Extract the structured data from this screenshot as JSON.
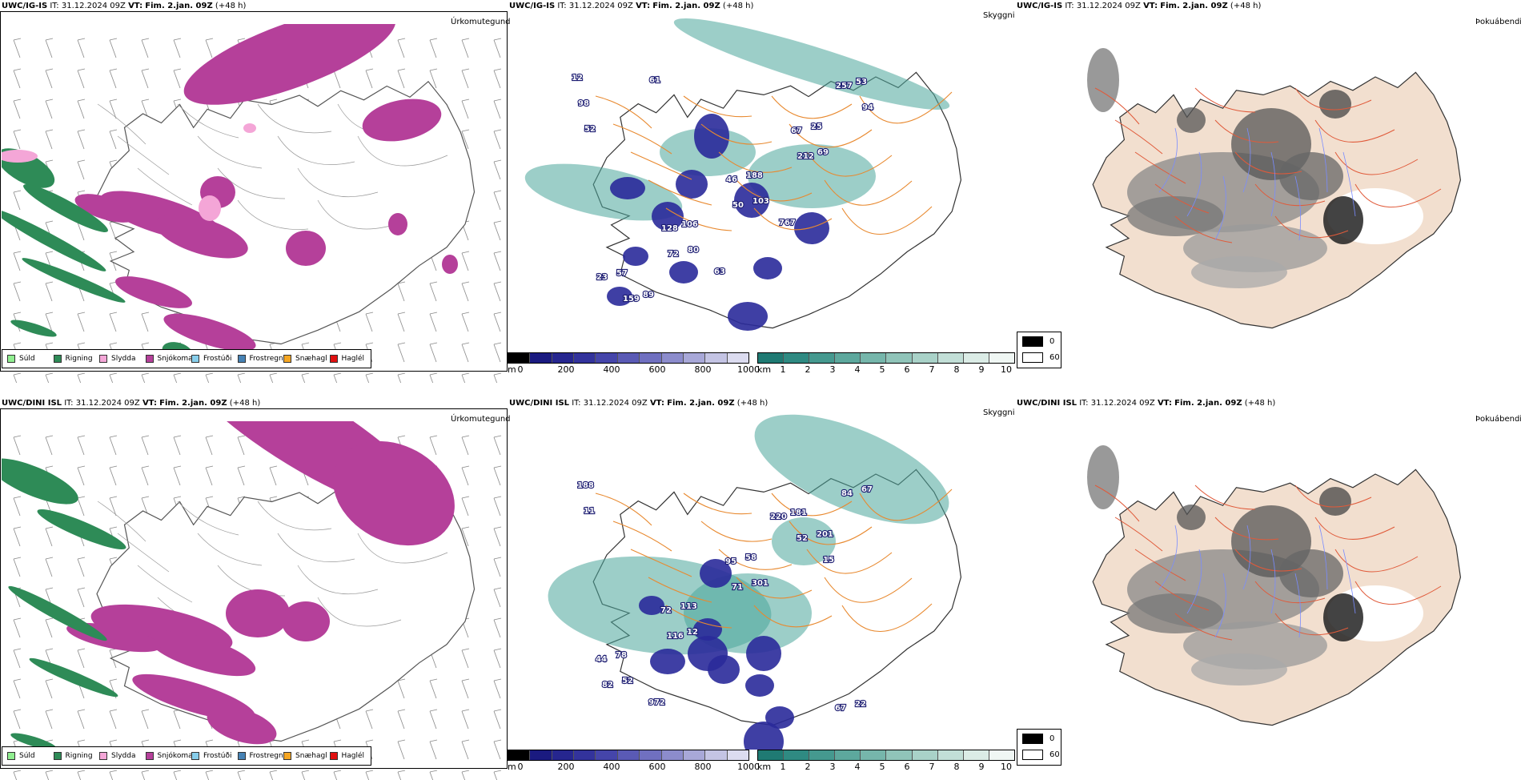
{
  "rows": [
    {
      "model": "UWC/IG-IS",
      "it_label": "IT:",
      "it_value": "31.12.2024 09Z",
      "vt_label": "VT:",
      "vt_value": "Fim. 2.jan. 09Z",
      "lead": "(+48 h)",
      "precip_title": "Úrkomutegund",
      "vis_title": "Skyggni",
      "fog_title": "Þokuábendi",
      "vis_labels": [
        "12",
        "25",
        "188",
        "106",
        "57",
        "53",
        "67",
        "46",
        "128",
        "23",
        "257",
        "89",
        "98",
        "69",
        "103",
        "80",
        "159",
        "94",
        "212",
        "50",
        "72",
        "767",
        "63",
        "61",
        "52"
      ]
    },
    {
      "model": "UWC/DINI ISL",
      "it_label": "IT:",
      "it_value": "31.12.2024 09Z",
      "vt_label": "VT:",
      "vt_value": "Fim. 2.jan. 09Z",
      "lead": "(+48 h)",
      "precip_title": "Úrkomutegund",
      "vis_title": "Skyggni",
      "fog_title": "Þokuábendi",
      "vis_labels": [
        "58",
        "113",
        "78",
        "22",
        "181",
        "95",
        "72",
        "44",
        "67",
        "220",
        "188",
        "201",
        "301",
        "12",
        "52",
        "67",
        "52",
        "71",
        "116",
        "82",
        "84",
        "972",
        "11",
        "15"
      ]
    }
  ],
  "precip_legend": [
    {
      "label": "Súld",
      "color": "#90ee90"
    },
    {
      "label": "Rigning",
      "color": "#2e8b57"
    },
    {
      "label": "Slydda",
      "color": "#f4a6d7"
    },
    {
      "label": "Snjókoma",
      "color": "#b5409a"
    },
    {
      "label": "Frostúði",
      "color": "#87ceeb"
    },
    {
      "label": "Frostregn",
      "color": "#4682b4"
    },
    {
      "label": "Snæhagl",
      "color": "#f5a623"
    },
    {
      "label": "Haglél",
      "color": "#e01010"
    }
  ],
  "height_scale": {
    "unit": "m",
    "ticks": [
      "0",
      "200",
      "400",
      "600",
      "800",
      "1000"
    ],
    "colors": [
      "#000000",
      "#1a1a80",
      "#26268f",
      "#33339c",
      "#4545aa",
      "#5a5ab5",
      "#7070c0",
      "#8c8ccc",
      "#a8a8d8",
      "#c4c4e4",
      "#dcdcf0"
    ]
  },
  "vis_scale": {
    "unit": "km",
    "ticks": [
      "1",
      "2",
      "3",
      "4",
      "5",
      "6",
      "7",
      "8",
      "9",
      "10"
    ],
    "colors": [
      "#1f7a73",
      "#2f8a82",
      "#45998f",
      "#5da89d",
      "#76b6ab",
      "#90c4b9",
      "#a9d2c8",
      "#c2dfd7",
      "#dbece6",
      "#f0f7f4"
    ]
  },
  "fog_legend": [
    {
      "label": "0",
      "color": "#000000"
    },
    {
      "label": "60",
      "color": "#ffffff"
    }
  ],
  "colors": {
    "snow": "#b5409a",
    "rain": "#2e8b57",
    "sleet": "#f4a6d7",
    "low_cloud": "#2a2a9a",
    "fog_vis": "#4aa69a",
    "roads": "#e8892f",
    "land": "#f2dfcf",
    "fog_roads": "#e05a3a",
    "rivers": "#7a8cff"
  }
}
